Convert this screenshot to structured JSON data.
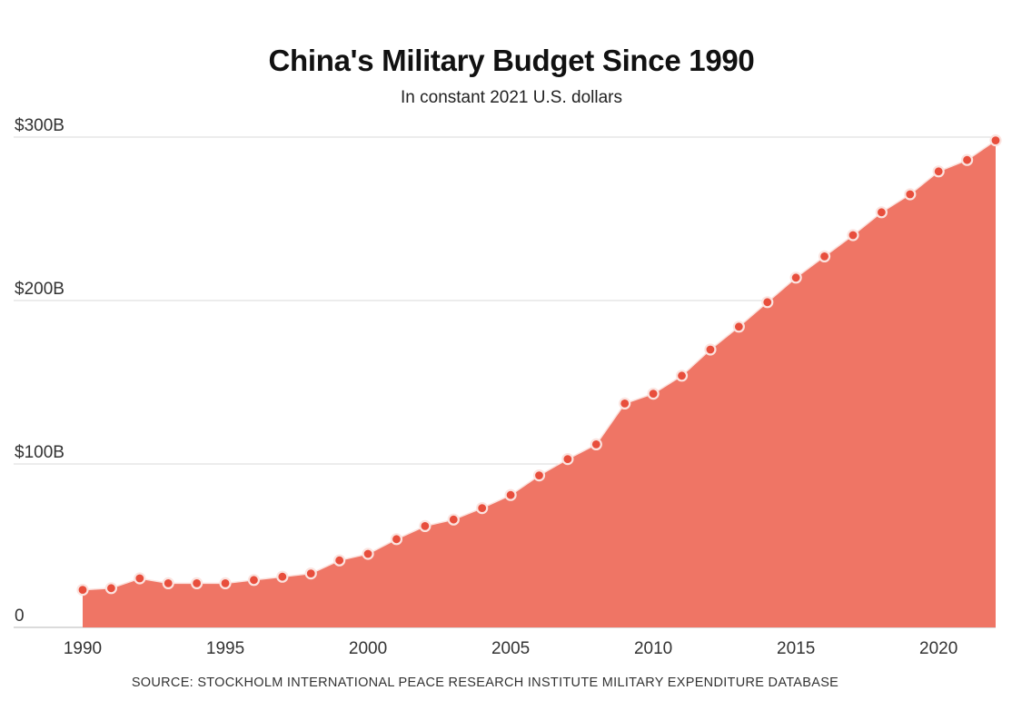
{
  "chart_data": {
    "type": "area",
    "title": "China's Military Budget Since 1990",
    "subtitle": "In constant 2021 U.S. dollars",
    "source": "SOURCE: STOCKHOLM INTERNATIONAL PEACE RESEARCH INSTITUTE MILITARY EXPENDITURE DATABASE",
    "xlabel": "",
    "ylabel": "",
    "unit": "billions of constant 2021 U.S. dollars",
    "x": [
      1990,
      1991,
      1992,
      1993,
      1994,
      1995,
      1996,
      1997,
      1998,
      1999,
      2000,
      2001,
      2002,
      2003,
      2004,
      2005,
      2006,
      2007,
      2008,
      2009,
      2010,
      2011,
      2012,
      2013,
      2014,
      2015,
      2016,
      2017,
      2018,
      2019,
      2020,
      2021,
      2022
    ],
    "values": [
      23,
      24,
      30,
      27,
      27,
      27,
      29,
      31,
      33,
      41,
      45,
      54,
      62,
      66,
      73,
      81,
      93,
      103,
      112,
      137,
      143,
      154,
      170,
      184,
      199,
      214,
      227,
      240,
      254,
      265,
      279,
      286,
      298
    ],
    "xlim": [
      1990,
      2022
    ],
    "ylim": [
      0,
      300
    ],
    "yticks": [
      0,
      100,
      200,
      300
    ],
    "ytick_labels": [
      "0",
      "$100B",
      "$200B",
      "$300B"
    ],
    "xticks": [
      1990,
      1995,
      2000,
      2005,
      2010,
      2015,
      2020
    ],
    "xtick_labels": [
      "1990",
      "1995",
      "2000",
      "2005",
      "2010",
      "2015",
      "2020"
    ],
    "grid": "horizontal",
    "legend": "none",
    "colors": {
      "area": "#ef7565",
      "marker": "#e84e3c",
      "marker_outline": "#fbe3df",
      "grid": "#d9d9d9",
      "baseline": "#cfcfcf"
    }
  }
}
